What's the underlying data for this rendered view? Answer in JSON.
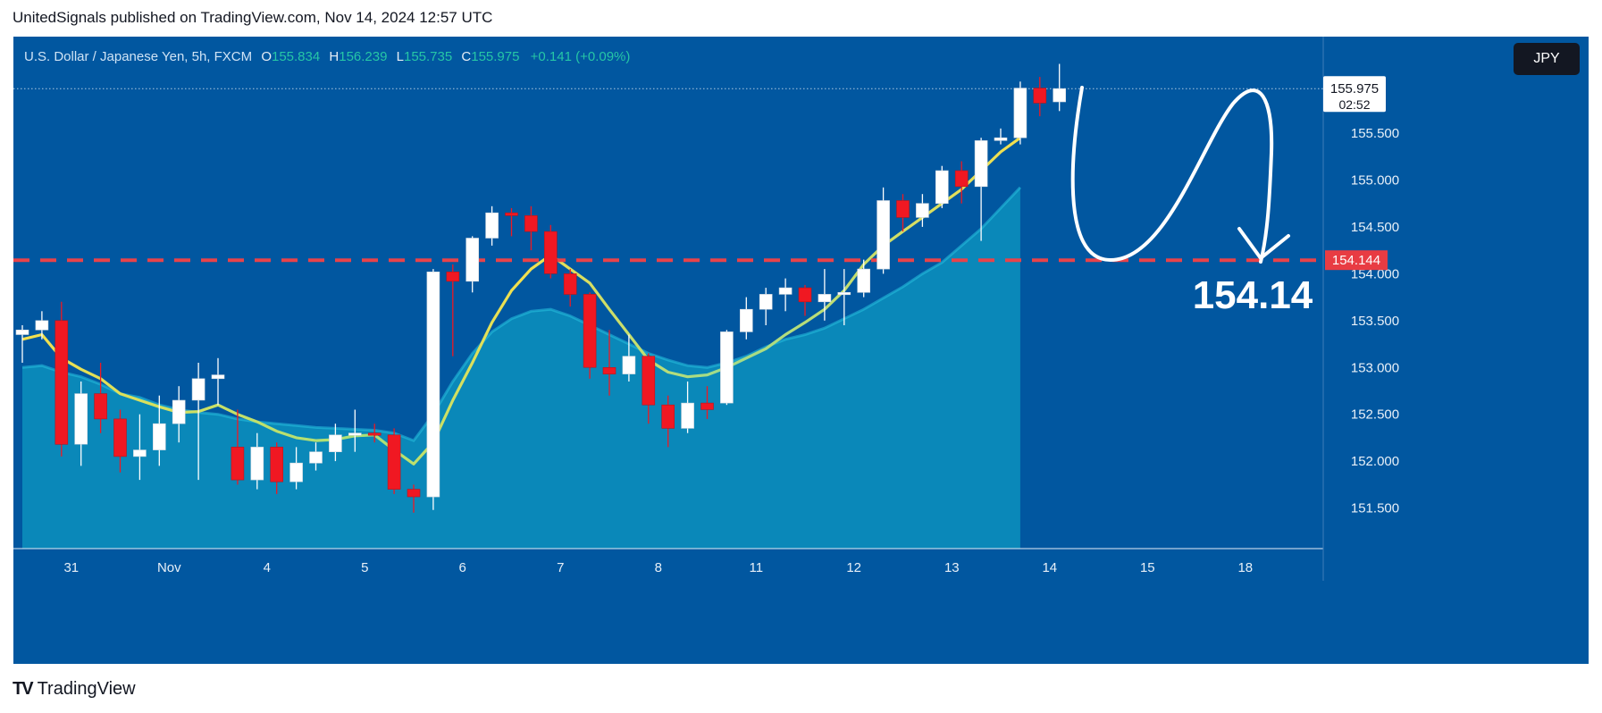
{
  "header": {
    "publisher": "UnitedSignals published on TradingView.com, Nov 14, 2024 12:57 UTC"
  },
  "legend": {
    "symbol": "U.S. Dollar / Japanese Yen, 5h, FXCM",
    "o_label": "O",
    "o": "155.834",
    "h_label": "H",
    "h": "156.239",
    "l_label": "L",
    "l": "155.735",
    "c_label": "C",
    "c": "155.975",
    "change": "+0.141 (+0.09%)"
  },
  "currency": "JPY",
  "brand": {
    "logo": "TV",
    "name": "TradingView"
  },
  "colors": {
    "background": "#0157a0",
    "bull": "#ffffff",
    "bear": "#f01822",
    "fast_ma": "#f4e04d",
    "slow_ma": "#28c2e0",
    "area": "#0b8bbb",
    "level_line": "#e8434a",
    "annotation": "#ffffff"
  },
  "chart_data": {
    "type": "candlestick",
    "symbol": "USDJPY",
    "interval": "5h",
    "y_ticks": [
      "151.500",
      "152.000",
      "152.500",
      "153.000",
      "153.500",
      "154.000",
      "154.500",
      "155.000",
      "155.500"
    ],
    "ylim": [
      151.4,
      156.4
    ],
    "x_ticks": [
      {
        "label": "31",
        "i": 2.5
      },
      {
        "label": "Nov",
        "i": 7.5
      },
      {
        "label": "4",
        "i": 12.5
      },
      {
        "label": "5",
        "i": 17.5
      },
      {
        "label": "6",
        "i": 22.5
      },
      {
        "label": "7",
        "i": 27.5
      },
      {
        "label": "8",
        "i": 32.5
      },
      {
        "label": "11",
        "i": 37.5
      },
      {
        "label": "12",
        "i": 42.5
      },
      {
        "label": "13",
        "i": 47.5
      },
      {
        "label": "14",
        "i": 52.5
      },
      {
        "label": "15",
        "i": 57.5
      },
      {
        "label": "18",
        "i": 62.5
      }
    ],
    "candles": [
      {
        "o": 153.35,
        "h": 153.45,
        "l": 153.05,
        "c": 153.4
      },
      {
        "o": 153.4,
        "h": 153.6,
        "l": 153.3,
        "c": 153.5
      },
      {
        "o": 153.5,
        "h": 153.7,
        "l": 152.05,
        "c": 152.18
      },
      {
        "o": 152.18,
        "h": 152.85,
        "l": 151.95,
        "c": 152.72
      },
      {
        "o": 152.72,
        "h": 153.05,
        "l": 152.3,
        "c": 152.45
      },
      {
        "o": 152.45,
        "h": 152.55,
        "l": 151.88,
        "c": 152.05
      },
      {
        "o": 152.05,
        "h": 152.5,
        "l": 151.8,
        "c": 152.12
      },
      {
        "o": 152.12,
        "h": 152.7,
        "l": 151.95,
        "c": 152.4
      },
      {
        "o": 152.4,
        "h": 152.8,
        "l": 152.2,
        "c": 152.65
      },
      {
        "o": 152.65,
        "h": 153.05,
        "l": 151.8,
        "c": 152.88
      },
      {
        "o": 152.88,
        "h": 153.1,
        "l": 152.6,
        "c": 152.92
      },
      {
        "o": 152.15,
        "h": 152.55,
        "l": 151.75,
        "c": 151.8
      },
      {
        "o": 151.8,
        "h": 152.3,
        "l": 151.7,
        "c": 152.15
      },
      {
        "o": 152.15,
        "h": 152.2,
        "l": 151.65,
        "c": 151.78
      },
      {
        "o": 151.78,
        "h": 152.15,
        "l": 151.7,
        "c": 151.98
      },
      {
        "o": 151.98,
        "h": 152.2,
        "l": 151.9,
        "c": 152.1
      },
      {
        "o": 152.1,
        "h": 152.4,
        "l": 152.0,
        "c": 152.28
      },
      {
        "o": 152.28,
        "h": 152.55,
        "l": 152.1,
        "c": 152.3
      },
      {
        "o": 152.3,
        "h": 152.4,
        "l": 152.2,
        "c": 152.28
      },
      {
        "o": 152.28,
        "h": 152.35,
        "l": 151.65,
        "c": 151.7
      },
      {
        "o": 151.7,
        "h": 151.75,
        "l": 151.45,
        "c": 151.62
      },
      {
        "o": 151.62,
        "h": 154.05,
        "l": 151.48,
        "c": 154.02
      },
      {
        "o": 154.02,
        "h": 154.1,
        "l": 153.12,
        "c": 153.92
      },
      {
        "o": 153.92,
        "h": 154.4,
        "l": 153.8,
        "c": 154.38
      },
      {
        "o": 154.38,
        "h": 154.72,
        "l": 154.3,
        "c": 154.65
      },
      {
        "o": 154.65,
        "h": 154.7,
        "l": 154.4,
        "c": 154.62
      },
      {
        "o": 154.62,
        "h": 154.72,
        "l": 154.25,
        "c": 154.45
      },
      {
        "o": 154.45,
        "h": 154.52,
        "l": 153.95,
        "c": 154.0
      },
      {
        "o": 154.0,
        "h": 154.05,
        "l": 153.65,
        "c": 153.78
      },
      {
        "o": 153.78,
        "h": 153.8,
        "l": 152.88,
        "c": 153.0
      },
      {
        "o": 153.0,
        "h": 153.4,
        "l": 152.7,
        "c": 152.93
      },
      {
        "o": 152.93,
        "h": 153.35,
        "l": 152.85,
        "c": 153.12
      },
      {
        "o": 153.12,
        "h": 153.15,
        "l": 152.4,
        "c": 152.6
      },
      {
        "o": 152.6,
        "h": 152.7,
        "l": 152.15,
        "c": 152.35
      },
      {
        "o": 152.35,
        "h": 152.85,
        "l": 152.3,
        "c": 152.62
      },
      {
        "o": 152.62,
        "h": 152.8,
        "l": 152.45,
        "c": 152.55
      },
      {
        "o": 152.62,
        "h": 153.4,
        "l": 152.6,
        "c": 153.38
      },
      {
        "o": 153.38,
        "h": 153.75,
        "l": 153.3,
        "c": 153.62
      },
      {
        "o": 153.62,
        "h": 153.85,
        "l": 153.45,
        "c": 153.78
      },
      {
        "o": 153.78,
        "h": 153.95,
        "l": 153.6,
        "c": 153.85
      },
      {
        "o": 153.85,
        "h": 153.88,
        "l": 153.55,
        "c": 153.7
      },
      {
        "o": 153.7,
        "h": 154.05,
        "l": 153.5,
        "c": 153.78
      },
      {
        "o": 153.78,
        "h": 154.05,
        "l": 153.45,
        "c": 153.8
      },
      {
        "o": 153.8,
        "h": 154.15,
        "l": 153.75,
        "c": 154.05
      },
      {
        "o": 154.05,
        "h": 154.92,
        "l": 154.0,
        "c": 154.78
      },
      {
        "o": 154.78,
        "h": 154.85,
        "l": 154.45,
        "c": 154.6
      },
      {
        "o": 154.6,
        "h": 154.85,
        "l": 154.5,
        "c": 154.75
      },
      {
        "o": 154.75,
        "h": 155.15,
        "l": 154.7,
        "c": 155.1
      },
      {
        "o": 155.1,
        "h": 155.2,
        "l": 154.75,
        "c": 154.93
      },
      {
        "o": 154.93,
        "h": 155.45,
        "l": 154.35,
        "c": 155.42
      },
      {
        "o": 155.42,
        "h": 155.55,
        "l": 155.38,
        "c": 155.45
      },
      {
        "o": 155.45,
        "h": 156.05,
        "l": 155.38,
        "c": 155.98
      },
      {
        "o": 155.98,
        "h": 156.1,
        "l": 155.68,
        "c": 155.82
      },
      {
        "o": 155.834,
        "h": 156.239,
        "l": 155.735,
        "c": 155.975
      }
    ],
    "fast_ma": [
      153.3,
      153.35,
      153.1,
      152.98,
      152.88,
      152.72,
      152.65,
      152.58,
      152.52,
      152.53,
      152.6,
      152.5,
      152.42,
      152.32,
      152.25,
      152.22,
      152.23,
      152.27,
      152.28,
      152.12,
      151.97,
      152.2,
      152.65,
      153.05,
      153.48,
      153.82,
      154.05,
      154.2,
      154.05,
      153.9,
      153.62,
      153.35,
      153.08,
      152.95,
      152.9,
      152.92,
      153.0,
      153.1,
      153.2,
      153.35,
      153.48,
      153.62,
      153.82,
      154.1,
      154.3,
      154.45,
      154.6,
      154.75,
      154.9,
      155.1,
      155.3,
      155.45
    ],
    "slow_ma": [
      153.0,
      153.02,
      152.95,
      152.9,
      152.82,
      152.72,
      152.68,
      152.6,
      152.55,
      152.52,
      152.5,
      152.45,
      152.42,
      152.4,
      152.38,
      152.36,
      152.35,
      152.34,
      152.33,
      152.3,
      152.22,
      152.5,
      152.85,
      153.15,
      153.38,
      153.52,
      153.6,
      153.62,
      153.55,
      153.45,
      153.35,
      153.25,
      153.15,
      153.08,
      153.02,
      153.0,
      153.05,
      153.12,
      153.22,
      153.3,
      153.35,
      153.42,
      153.52,
      153.62,
      153.74,
      153.86,
      154.0,
      154.12,
      154.3,
      154.48,
      154.7,
      154.92
    ],
    "current_price": "155.975",
    "countdown": "02:52",
    "level_value": 154.144,
    "level_label": "154.144",
    "annotation_label": "154.14"
  }
}
